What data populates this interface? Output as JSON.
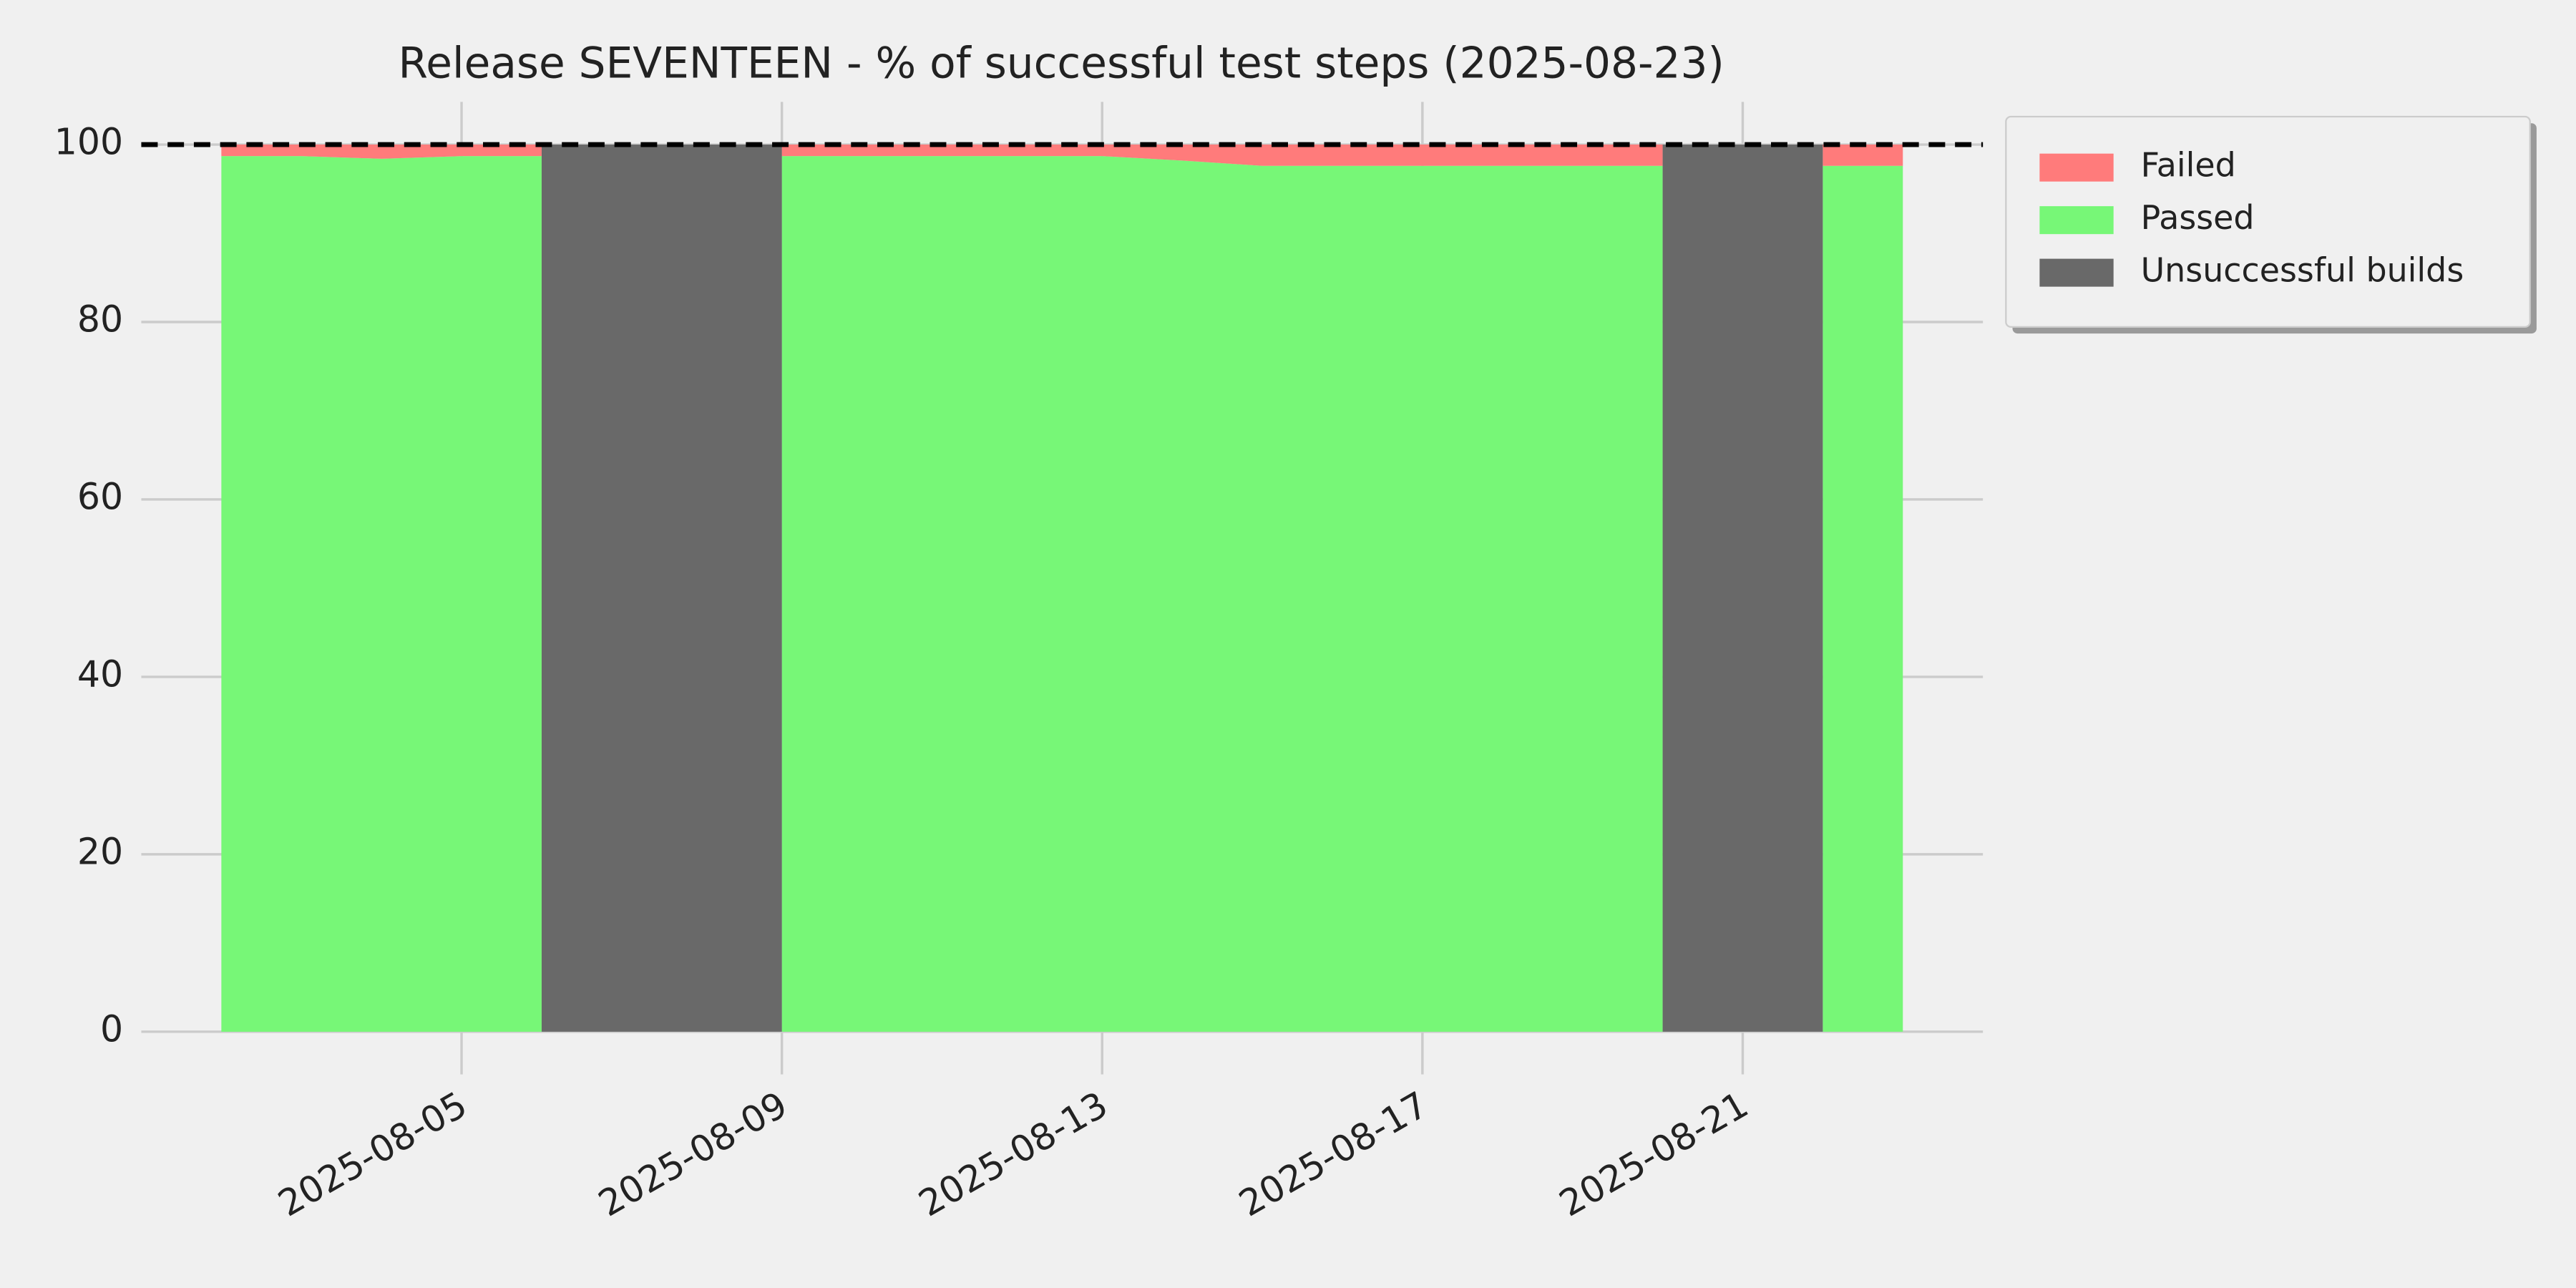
{
  "chart_data": {
    "type": "stacked_area",
    "title": "Release SEVENTEEN - % of successful test steps (2025-08-23)",
    "x": [
      "2025-08-02",
      "2025-08-03",
      "2025-08-04",
      "2025-08-05",
      "2025-08-06",
      "2025-08-07",
      "2025-08-08",
      "2025-08-09",
      "2025-08-10",
      "2025-08-11",
      "2025-08-12",
      "2025-08-13",
      "2025-08-14",
      "2025-08-15",
      "2025-08-16",
      "2025-08-17",
      "2025-08-18",
      "2025-08-19",
      "2025-08-20",
      "2025-08-21",
      "2025-08-22",
      "2025-08-23"
    ],
    "series": [
      {
        "name": "Failed",
        "color": "#ff7b7b",
        "values": [
          1.3,
          1.3,
          1.6,
          1.3,
          1.3,
          null,
          null,
          1.3,
          1.3,
          1.3,
          1.3,
          1.3,
          1.8,
          2.4,
          2.4,
          2.4,
          2.4,
          2.4,
          2.4,
          null,
          2.4,
          2.4
        ]
      },
      {
        "name": "Passed",
        "color": "#77f777",
        "values": [
          98.7,
          98.7,
          98.4,
          98.7,
          98.7,
          null,
          null,
          98.7,
          98.7,
          98.7,
          98.7,
          98.7,
          98.2,
          97.6,
          97.6,
          97.6,
          97.6,
          97.6,
          97.6,
          null,
          97.6,
          97.6
        ]
      },
      {
        "name": "Unsuccessful builds",
        "color": "#696969",
        "values": [
          null,
          null,
          null,
          null,
          null,
          100,
          100,
          null,
          null,
          null,
          null,
          null,
          null,
          null,
          null,
          null,
          null,
          null,
          null,
          100,
          null,
          null
        ]
      }
    ],
    "reference_line": 100,
    "xlim": [
      "2025-08-01",
      "2025-08-24"
    ],
    "xticks": [
      "2025-08-05",
      "2025-08-09",
      "2025-08-13",
      "2025-08-17",
      "2025-08-21"
    ],
    "ylim": [
      0,
      100
    ],
    "yticks": [
      0,
      20,
      40,
      60,
      80,
      100
    ],
    "grid": true,
    "legend": "outside upper right"
  }
}
